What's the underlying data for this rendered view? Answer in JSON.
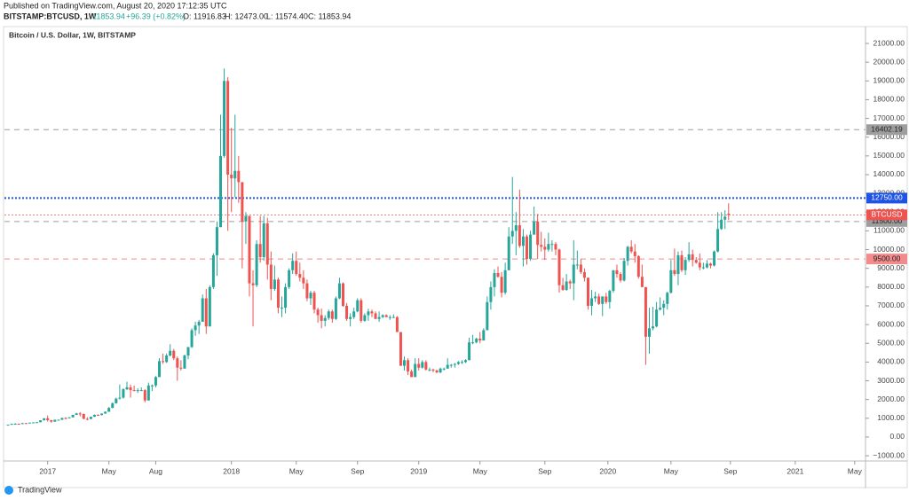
{
  "header": {
    "published": "Published on TradingView.com, August 20, 2020 17:12:35 UTC",
    "symbol": "BITSTAMP:BTCUSD, 1W",
    "last": "11853.94",
    "change": "+96.39 (+0.82%)",
    "open": "O: 11916.83",
    "high": "H: 12473.00",
    "low": "L: 11574.40",
    "close": "C: 11853.94"
  },
  "logo": "TradingView",
  "chart_data": {
    "type": "candlestick",
    "title": "Bitcoin / U.S. Dollar, 1W, BITSTAMP",
    "up_color": "#26a69a",
    "down_color": "#ef5350",
    "xlim": [
      -1,
      238
    ],
    "xticks": [
      {
        "value": 11,
        "label": "2017"
      },
      {
        "value": 28,
        "label": "May"
      },
      {
        "value": 41,
        "label": "Aug"
      },
      {
        "value": 62,
        "label": "2018"
      },
      {
        "value": 80,
        "label": "May"
      },
      {
        "value": 97,
        "label": "Sep"
      },
      {
        "value": 114,
        "label": "2019"
      },
      {
        "value": 131,
        "label": "May"
      },
      {
        "value": 149,
        "label": "Sep"
      },
      {
        "value": 166.5,
        "label": "2020"
      },
      {
        "value": 184,
        "label": "May"
      },
      {
        "value": 200.5,
        "label": "Sep"
      },
      {
        "value": 218.5,
        "label": "2021"
      },
      {
        "value": 235,
        "label": "May"
      }
    ],
    "ylim": [
      -1280,
      21900
    ],
    "yticks": [
      {
        "value": -1000,
        "label": "−1000.00"
      },
      {
        "value": 0,
        "label": "0.00"
      },
      {
        "value": 1000,
        "label": "1000.00"
      },
      {
        "value": 2000,
        "label": "2000.00"
      },
      {
        "value": 3000,
        "label": "3000.00"
      },
      {
        "value": 4000,
        "label": "4000.00"
      },
      {
        "value": 5000,
        "label": "5000.00"
      },
      {
        "value": 6000,
        "label": "6000.00"
      },
      {
        "value": 7000,
        "label": "7000.00"
      },
      {
        "value": 8000,
        "label": "8000.00"
      },
      {
        "value": 9000,
        "label": "9000.00"
      },
      {
        "value": 10000,
        "label": "10000.00"
      },
      {
        "value": 11000,
        "label": "11000.00"
      },
      {
        "value": 12000,
        "label": "12000.00"
      },
      {
        "value": 13000,
        "label": "13000.00"
      },
      {
        "value": 14000,
        "label": "14000.00"
      },
      {
        "value": 15000,
        "label": "15000.00"
      },
      {
        "value": 16000,
        "label": "16000.00"
      },
      {
        "value": 17000,
        "label": "17000.00"
      },
      {
        "value": 18000,
        "label": "18000.00"
      },
      {
        "value": 19000,
        "label": "19000.00"
      },
      {
        "value": 20000,
        "label": "20000.00"
      },
      {
        "value": 21000,
        "label": "21000.00"
      }
    ],
    "levels": [
      {
        "value": 16402.19,
        "color": "#9e9e9e",
        "style": "dashed"
      },
      {
        "value": 12750,
        "label": "12750.00",
        "color": "#1e53e5",
        "style": "dotted"
      },
      {
        "value": 11500,
        "label": "11500.00",
        "color": "#9e9e9e",
        "style": "dashed"
      },
      {
        "value": 9500,
        "label": "9500.00",
        "color": "#f28b8b",
        "style": "dashed"
      }
    ],
    "last_price": {
      "name": "BTCUSD",
      "value": 11853.94,
      "color": "#ef5350"
    },
    "values": [
      [
        640,
        660,
        630,
        655
      ],
      [
        655,
        720,
        650,
        700
      ],
      [
        700,
        740,
        690,
        705
      ],
      [
        705,
        720,
        690,
        700
      ],
      [
        700,
        750,
        695,
        740
      ],
      [
        740,
        750,
        720,
        735
      ],
      [
        735,
        770,
        730,
        765
      ],
      [
        765,
        785,
        755,
        780
      ],
      [
        780,
        795,
        770,
        790
      ],
      [
        790,
        900,
        785,
        890
      ],
      [
        890,
        1000,
        880,
        1000
      ],
      [
        1000,
        1150,
        820,
        900
      ],
      [
        900,
        910,
        760,
        820
      ],
      [
        820,
        930,
        810,
        920
      ],
      [
        920,
        930,
        880,
        920
      ],
      [
        920,
        1030,
        910,
        1015
      ],
      [
        1015,
        1060,
        950,
        1000
      ],
      [
        1000,
        1060,
        990,
        1050
      ],
      [
        1050,
        1190,
        1040,
        1180
      ],
      [
        1180,
        1290,
        1170,
        1260
      ],
      [
        1260,
        1330,
        1100,
        1230
      ],
      [
        1230,
        1250,
        950,
        970
      ],
      [
        970,
        1060,
        890,
        960
      ],
      [
        960,
        1090,
        950,
        1080
      ],
      [
        1080,
        1200,
        1070,
        1180
      ],
      [
        1180,
        1210,
        1160,
        1170
      ],
      [
        1170,
        1260,
        1160,
        1250
      ],
      [
        1250,
        1360,
        1240,
        1350
      ],
      [
        1350,
        1600,
        1340,
        1550
      ],
      [
        1550,
        1850,
        1540,
        1800
      ],
      [
        1800,
        2100,
        1780,
        2050
      ],
      [
        2050,
        2800,
        2000,
        2100
      ],
      [
        2100,
        2600,
        2050,
        2550
      ],
      [
        2550,
        2950,
        2500,
        2650
      ],
      [
        2650,
        2800,
        2100,
        2500
      ],
      [
        2500,
        2750,
        2450,
        2450
      ],
      [
        2450,
        2600,
        2350,
        2500
      ],
      [
        2500,
        2650,
        2450,
        2500
      ],
      [
        2500,
        2550,
        1850,
        1950
      ],
      [
        1950,
        2900,
        1950,
        2750
      ],
      [
        2750,
        2800,
        2450,
        2750
      ],
      [
        2750,
        3250,
        2650,
        3200
      ],
      [
        3200,
        4200,
        3200,
        4050
      ],
      [
        4050,
        4450,
        3900,
        4000
      ],
      [
        4000,
        4450,
        3950,
        4350
      ],
      [
        4350,
        4950,
        4300,
        4600
      ],
      [
        4600,
        4700,
        4100,
        4200
      ],
      [
        4200,
        4300,
        3000,
        3700
      ],
      [
        3700,
        4100,
        3550,
        3650
      ],
      [
        3650,
        4400,
        3650,
        4350
      ],
      [
        4350,
        4800,
        4150,
        4800
      ],
      [
        4800,
        5800,
        4750,
        5700
      ],
      [
        5700,
        6150,
        5400,
        5950
      ],
      [
        5950,
        6250,
        5500,
        6150
      ],
      [
        6150,
        7600,
        6150,
        7400
      ],
      [
        7400,
        7900,
        5500,
        5900
      ],
      [
        5900,
        8100,
        5900,
        8000
      ],
      [
        8000,
        9800,
        7900,
        9700
      ],
      [
        9700,
        11500,
        8600,
        11200
      ],
      [
        11200,
        17200,
        11200,
        15000
      ],
      [
        15000,
        19666,
        14900,
        19000
      ],
      [
        19000,
        19200,
        11000,
        14000
      ],
      [
        14000,
        16500,
        12000,
        13800
      ],
      [
        13800,
        17200,
        12800,
        14200
      ],
      [
        14200,
        15000,
        12500,
        13600
      ],
      [
        13600,
        13600,
        9000,
        11500
      ],
      [
        11500,
        12000,
        10300,
        11800
      ],
      [
        11800,
        11800,
        7500,
        8200
      ],
      [
        8200,
        8900,
        5900,
        8100
      ],
      [
        8100,
        10500,
        8000,
        10300
      ],
      [
        10300,
        11800,
        9300,
        9600
      ],
      [
        9600,
        11800,
        9400,
        11400
      ],
      [
        11400,
        11700,
        8400,
        9200
      ],
      [
        9200,
        9900,
        7300,
        7900
      ],
      [
        7900,
        9150,
        7800,
        8400
      ],
      [
        8400,
        8500,
        6600,
        6900
      ],
      [
        6900,
        7500,
        6400,
        6900
      ],
      [
        6900,
        8200,
        6600,
        8000
      ],
      [
        8000,
        9000,
        7900,
        8900
      ],
      [
        8900,
        9800,
        8700,
        9400
      ],
      [
        9400,
        9900,
        8600,
        8700
      ],
      [
        8700,
        9300,
        8300,
        8500
      ],
      [
        8500,
        8900,
        7900,
        8200
      ],
      [
        8200,
        8400,
        7250,
        7400
      ],
      [
        7400,
        7800,
        7050,
        7700
      ],
      [
        7700,
        7800,
        6600,
        6800
      ],
      [
        6800,
        6900,
        6100,
        6500
      ],
      [
        6500,
        6850,
        5800,
        6200
      ],
      [
        6200,
        6500,
        5900,
        6350
      ],
      [
        6350,
        6800,
        6250,
        6700
      ],
      [
        6700,
        6800,
        6100,
        6300
      ],
      [
        6300,
        7500,
        6250,
        7400
      ],
      [
        7400,
        8500,
        7350,
        8200
      ],
      [
        8200,
        8250,
        6950,
        7000
      ],
      [
        7000,
        7150,
        6200,
        6300
      ],
      [
        6300,
        6600,
        5900,
        6400
      ],
      [
        6400,
        6900,
        6300,
        6700
      ],
      [
        6700,
        7400,
        6650,
        7300
      ],
      [
        7300,
        7400,
        6100,
        6200
      ],
      [
        6200,
        6600,
        6150,
        6500
      ],
      [
        6500,
        6850,
        6200,
        6700
      ],
      [
        6700,
        6800,
        6400,
        6600
      ],
      [
        6600,
        6700,
        6300,
        6300
      ],
      [
        6300,
        6700,
        6150,
        6400
      ],
      [
        6400,
        6550,
        6350,
        6500
      ],
      [
        6500,
        6550,
        6400,
        6400
      ],
      [
        6400,
        6500,
        6250,
        6400
      ],
      [
        6400,
        6550,
        6350,
        6400
      ],
      [
        6400,
        6450,
        5600,
        5600
      ],
      [
        5600,
        5600,
        3800,
        3800
      ],
      [
        3800,
        4300,
        3550,
        4100
      ],
      [
        4100,
        4200,
        3300,
        3500
      ],
      [
        3500,
        3600,
        3200,
        3200
      ],
      [
        3200,
        4200,
        3200,
        3900
      ],
      [
        3900,
        4200,
        3550,
        3700
      ],
      [
        3700,
        4100,
        3650,
        4000
      ],
      [
        4000,
        4100,
        3550,
        3600
      ],
      [
        3600,
        3700,
        3500,
        3600
      ],
      [
        3600,
        3650,
        3450,
        3550
      ],
      [
        3550,
        3600,
        3400,
        3450
      ],
      [
        3450,
        3700,
        3400,
        3650
      ],
      [
        3650,
        3700,
        3550,
        3650
      ],
      [
        3650,
        4200,
        3650,
        3850
      ],
      [
        3850,
        3900,
        3700,
        3850
      ],
      [
        3850,
        3950,
        3700,
        3900
      ],
      [
        3900,
        4050,
        3850,
        4000
      ],
      [
        4000,
        4100,
        3900,
        4000
      ],
      [
        4000,
        4150,
        3950,
        4100
      ],
      [
        4100,
        5300,
        4100,
        5050
      ],
      [
        5050,
        5450,
        4950,
        5050
      ],
      [
        5050,
        5300,
        5000,
        5250
      ],
      [
        5250,
        5600,
        5000,
        5150
      ],
      [
        5150,
        5800,
        5150,
        5700
      ],
      [
        5700,
        7500,
        5700,
        7200
      ],
      [
        7200,
        8300,
        6800,
        8000
      ],
      [
        8000,
        8950,
        7500,
        8750
      ],
      [
        8750,
        9100,
        8500,
        8550
      ],
      [
        8550,
        8800,
        7450,
        7700
      ],
      [
        7700,
        9300,
        7600,
        8900
      ],
      [
        8900,
        11200,
        8900,
        10700
      ],
      [
        10700,
        13880,
        10300,
        11000
      ],
      [
        11000,
        12000,
        9700,
        11300
      ],
      [
        11300,
        13200,
        10100,
        10200
      ],
      [
        10200,
        11100,
        9100,
        10700
      ],
      [
        10700,
        10800,
        9200,
        9500
      ],
      [
        9500,
        11000,
        9400,
        10800
      ],
      [
        10800,
        12300,
        10800,
        11500
      ],
      [
        11500,
        11900,
        9500,
        10250
      ],
      [
        10250,
        10950,
        9900,
        10150
      ],
      [
        10150,
        10600,
        9450,
        10000
      ],
      [
        10000,
        10900,
        9900,
        10300
      ],
      [
        10300,
        10500,
        9900,
        10300
      ],
      [
        10300,
        10400,
        9700,
        10000
      ],
      [
        10000,
        10050,
        7700,
        8100
      ],
      [
        8100,
        8500,
        7800,
        7850
      ],
      [
        7850,
        8700,
        7800,
        8300
      ],
      [
        8300,
        8400,
        7900,
        8200
      ],
      [
        8200,
        10500,
        7300,
        9200
      ],
      [
        9200,
        9950,
        8950,
        9200
      ],
      [
        9200,
        9500,
        8700,
        8800
      ],
      [
        8800,
        9000,
        8300,
        8500
      ],
      [
        8500,
        8500,
        6800,
        7000
      ],
      [
        7000,
        7850,
        6500,
        7400
      ],
      [
        7400,
        7750,
        7200,
        7500
      ],
      [
        7500,
        7650,
        7050,
        7100
      ],
      [
        7100,
        7500,
        6450,
        7500
      ],
      [
        7500,
        7700,
        7100,
        7200
      ],
      [
        7200,
        7850,
        6850,
        7800
      ],
      [
        7800,
        8900,
        7700,
        8900
      ],
      [
        8900,
        9200,
        8500,
        8700
      ],
      [
        8700,
        8800,
        8250,
        8350
      ],
      [
        8350,
        9550,
        8300,
        9400
      ],
      [
        9400,
        10200,
        9150,
        10150
      ],
      [
        10150,
        10500,
        9800,
        9900
      ],
      [
        9900,
        10300,
        9300,
        9650
      ],
      [
        9650,
        9700,
        8450,
        8550
      ],
      [
        8550,
        9200,
        8000,
        8000
      ],
      [
        8000,
        8000,
        3850,
        5350
      ],
      [
        5350,
        6900,
        4450,
        5800
      ],
      [
        5800,
        6950,
        5700,
        5900
      ],
      [
        5900,
        7200,
        5850,
        6800
      ],
      [
        6800,
        7450,
        6750,
        6900
      ],
      [
        6900,
        7300,
        6500,
        7100
      ],
      [
        7100,
        7750,
        6800,
        7700
      ],
      [
        7700,
        9450,
        7650,
        8900
      ],
      [
        8900,
        10050,
        8600,
        8700
      ],
      [
        8700,
        9900,
        8100,
        9700
      ],
      [
        9700,
        9950,
        8800,
        8900
      ],
      [
        8900,
        9600,
        8650,
        9450
      ],
      [
        9450,
        10400,
        9350,
        9750
      ],
      [
        9750,
        10000,
        9100,
        9450
      ],
      [
        9450,
        9600,
        9250,
        9300
      ],
      [
        9300,
        9800,
        8900,
        9050
      ],
      [
        9050,
        9300,
        8950,
        9050
      ],
      [
        9050,
        9450,
        9000,
        9250
      ],
      [
        9250,
        9300,
        9000,
        9150
      ],
      [
        9150,
        9950,
        9100,
        9900
      ],
      [
        9900,
        12000,
        9850,
        11100
      ],
      [
        11100,
        12000,
        11050,
        11600
      ],
      [
        11600,
        12100,
        11100,
        11757.55
      ],
      [
        11916.83,
        12473,
        11574.4,
        11853.94
      ]
    ]
  }
}
